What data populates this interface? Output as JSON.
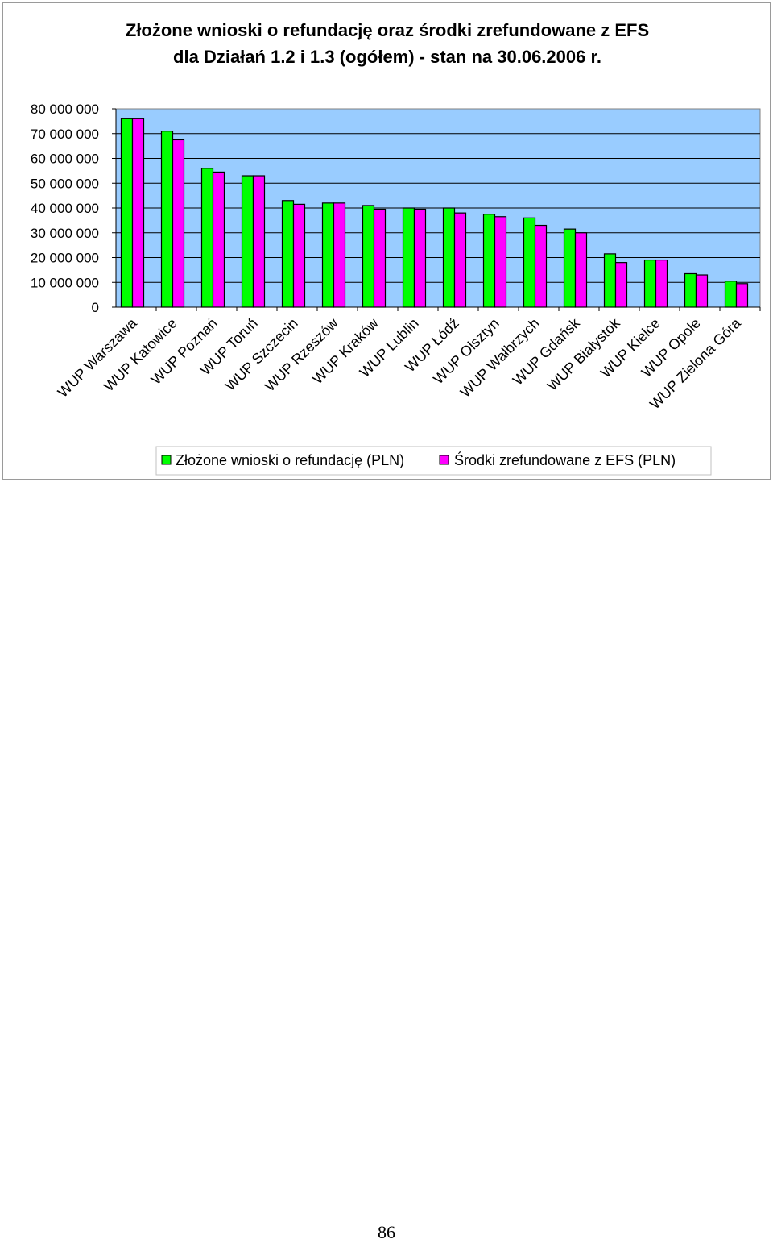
{
  "chart_data": {
    "type": "bar",
    "title": "Złożone wnioski o refundację oraz środki zrefundowane z EFS",
    "subtitle": "dla Działań 1.2 i 1.3 (ogółem) - stan na 30.06.2006 r.",
    "categories": [
      "WUP Warszawa",
      "WUP Katowice",
      "WUP Poznań",
      "WUP Toruń",
      "WUP Szczecin",
      "WUP Rzeszów",
      "WUP Kraków",
      "WUP Lublin",
      "WUP Łódź",
      "WUP Olsztyn",
      "WUP Wałbrzych",
      "WUP Gdańsk",
      "WUP Białystok",
      "WUP Kielce",
      "WUP Opole",
      "WUP Zielona Góra"
    ],
    "series": [
      {
        "name": "Złożone wnioski o refundację (PLN)",
        "color": "#00ff00",
        "values": [
          76000000,
          71000000,
          56000000,
          53000000,
          43000000,
          42000000,
          41000000,
          40000000,
          40000000,
          37500000,
          36000000,
          31500000,
          21500000,
          19000000,
          13500000,
          10500000
        ]
      },
      {
        "name": "Środki zrefundowane z EFS (PLN)",
        "color": "#ff00ff",
        "values": [
          76000000,
          67500000,
          54500000,
          53000000,
          41500000,
          42000000,
          39500000,
          39500000,
          38000000,
          36500000,
          33000000,
          30000000,
          18000000,
          19000000,
          13000000,
          9500000
        ]
      }
    ],
    "ylim": [
      0,
      80000000
    ],
    "yticks": [
      "0",
      "10 000 000",
      "20 000 000",
      "30 000 000",
      "40 000 000",
      "50 000 000",
      "60 000 000",
      "70 000 000",
      "80 000 000"
    ],
    "grid": true,
    "legend": "bottom",
    "plot_background": "#99ccff"
  },
  "page_number": "86"
}
